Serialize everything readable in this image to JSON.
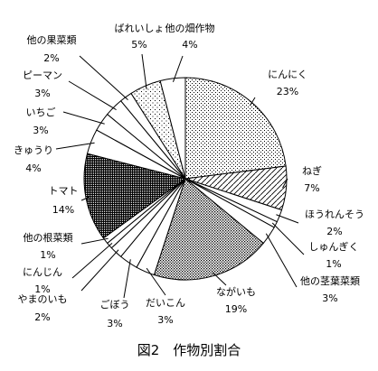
{
  "chart_data": {
    "type": "pie",
    "title": "図2　作物別割合",
    "start_angle_deg": 0,
    "direction": "clockwise",
    "slices": [
      {
        "label": "にんにく",
        "percent_label": "23%",
        "value": 23,
        "fill": "dots-fine"
      },
      {
        "label": "ねぎ",
        "percent_label": "7%",
        "value": 7,
        "fill": "hatch"
      },
      {
        "label": "ほうれんそう",
        "percent_label": "2%",
        "value": 2,
        "fill": "white"
      },
      {
        "label": "しゅんぎく",
        "percent_label": "1%",
        "value": 1,
        "fill": "white"
      },
      {
        "label": "他の茎葉菜類",
        "percent_label": "3%",
        "value": 3,
        "fill": "white"
      },
      {
        "label": "ながいも",
        "percent_label": "19%",
        "value": 19,
        "fill": "dots-dense"
      },
      {
        "label": "だいこん",
        "percent_label": "3%",
        "value": 3,
        "fill": "white"
      },
      {
        "label": "ごぼう",
        "percent_label": "3%",
        "value": 3,
        "fill": "white"
      },
      {
        "label": "やまのいも",
        "percent_label": "2%",
        "value": 2,
        "fill": "white"
      },
      {
        "label": "にんじん",
        "percent_label": "1%",
        "value": 1,
        "fill": "white"
      },
      {
        "label": "他の根菜類",
        "percent_label": "1%",
        "value": 1,
        "fill": "white"
      },
      {
        "label": "トマト",
        "percent_label": "14%",
        "value": 14,
        "fill": "dark-checker"
      },
      {
        "label": "きゅうり",
        "percent_label": "4%",
        "value": 4,
        "fill": "white"
      },
      {
        "label": "いちご",
        "percent_label": "3%",
        "value": 3,
        "fill": "white"
      },
      {
        "label": "ピーマン",
        "percent_label": "3%",
        "value": 3,
        "fill": "white"
      },
      {
        "label": "他の果菜類",
        "percent_label": "2%",
        "value": 2,
        "fill": "white"
      },
      {
        "label": "ばれいしょ",
        "percent_label": "5%",
        "value": 5,
        "fill": "dots-sparse"
      },
      {
        "label": "他の畑作物",
        "percent_label": "4%",
        "value": 4,
        "fill": "white"
      }
    ]
  }
}
